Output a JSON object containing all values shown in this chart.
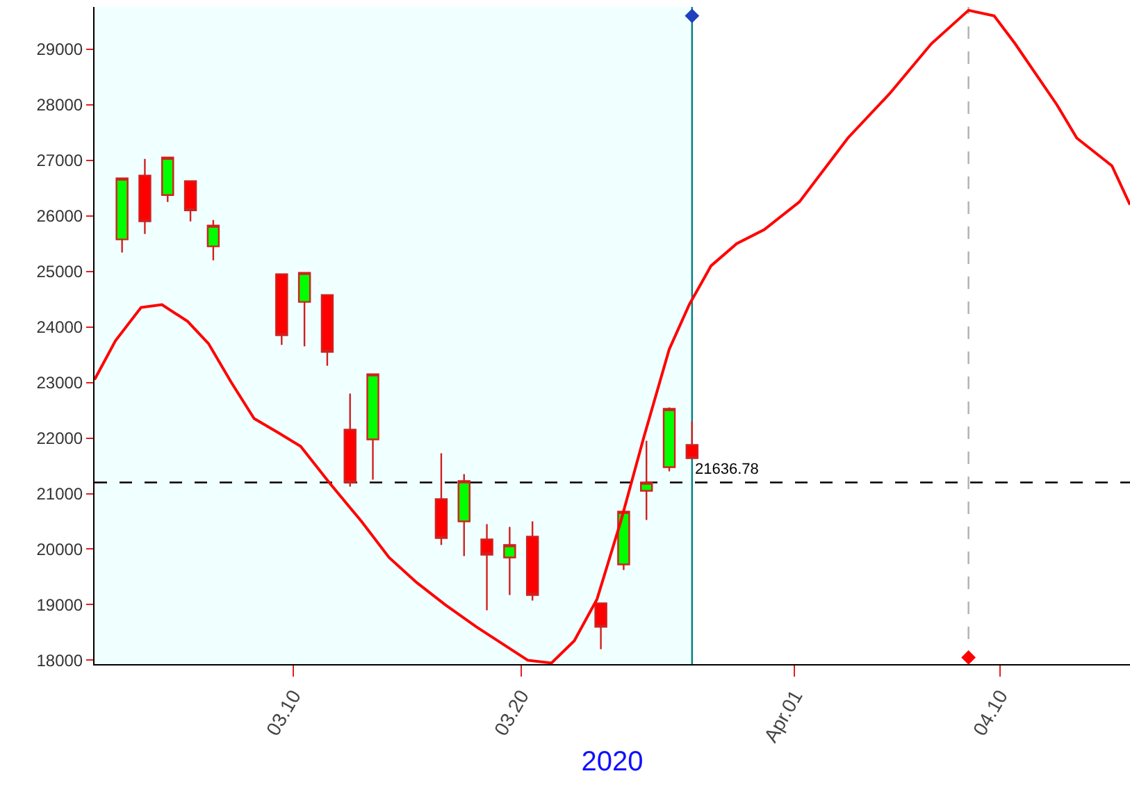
{
  "chart_data": {
    "type": "candlestick",
    "xlabel": "2020",
    "x": [
      "2020-03-02T12:00",
      "2020-03-03T12:00",
      "2020-03-04T12:00",
      "2020-03-05T12:00",
      "2020-03-06T12:00",
      "2020-03-09T12:00",
      "2020-03-10T12:00",
      "2020-03-11T12:00",
      "2020-03-12T12:00",
      "2020-03-13T12:00",
      "2020-03-16T12:00",
      "2020-03-17T12:00",
      "2020-03-18T12:00",
      "2020-03-19T12:00",
      "2020-03-20T12:00",
      "2020-03-23T12:00",
      "2020-03-24T12:00",
      "2020-03-25T12:00",
      "2020-03-26T12:00",
      "2020-03-27T12:00"
    ],
    "ohlc": [
      [
        25575,
        26675,
        25340,
        26675
      ],
      [
        26725,
        27025,
        25675,
        25900
      ],
      [
        26375,
        27050,
        26250,
        27050
      ],
      [
        26625,
        26625,
        25900,
        26100
      ],
      [
        25450,
        25925,
        25200,
        25825
      ],
      [
        24950,
        24950,
        23675,
        23850
      ],
      [
        24450,
        24975,
        23650,
        24975
      ],
      [
        24575,
        24575,
        23300,
        23550
      ],
      [
        22150,
        22800,
        21125,
        21200
      ],
      [
        21975,
        23150,
        21250,
        23150
      ],
      [
        20900,
        21725,
        20075,
        20200
      ],
      [
        20500,
        21350,
        19875,
        21225
      ],
      [
        20175,
        20450,
        18900,
        19900
      ],
      [
        19850,
        20400,
        19175,
        20075
      ],
      [
        20225,
        20500,
        19075,
        19175
      ],
      [
        19025,
        19025,
        18200,
        18600
      ],
      [
        19725,
        20675,
        19625,
        20675
      ],
      [
        21050,
        21950,
        20525,
        21200
      ],
      [
        21475,
        22550,
        21400,
        22525
      ],
      [
        21875,
        22300,
        21636.78,
        21636.78
      ]
    ],
    "colors": [
      "#00ff00",
      "#ff0000",
      "#00ff00",
      "#ff0000",
      "#00ff00",
      "#ff0000",
      "#00ff00",
      "#ff0000",
      "#ff0000",
      "#00ff00",
      "#ff0000",
      "#00ff00",
      "#ff0000",
      "#00ff00",
      "#ff0000",
      "#ff0000",
      "#00ff00",
      "#00ff00",
      "#00ff00",
      "#ff0000"
    ],
    "series": [
      {
        "type": "line",
        "color": "#ff0000",
        "x": [
          "2020-03-01T07:00",
          "2020-03-02T05:00",
          "2020-03-03T08:00",
          "2020-03-04T06:00",
          "2020-03-05T09:00",
          "2020-03-06T07:00",
          "2020-03-07T07:00",
          "2020-03-08T07:00",
          "2020-03-09T08:00",
          "2020-03-10T08:00",
          "2020-03-11T14:00",
          "2020-03-13T00:00",
          "2020-03-14T05:00",
          "2020-03-15T10:00",
          "2020-03-16T16:00",
          "2020-03-18T01:00",
          "2020-03-20T07:00",
          "2020-03-21T08:00",
          "2020-03-22T08:00",
          "2020-03-23T08:00",
          "2020-03-24T09:00",
          "2020-03-25T09:00",
          "2020-03-26T12:00",
          "2020-03-27T09:00",
          "2020-03-28T08:00",
          "2020-03-29T11:00",
          "2020-03-30T16:00",
          "2020-04-01T05:00",
          "2020-04-03T08:00",
          "2020-04-05T04:00",
          "2020-04-07T00:00",
          "2020-04-08T15:00",
          "2020-04-09T18:00",
          "2020-04-10T16:00",
          "2020-04-12T12:00",
          "2020-04-13T09:00",
          "2020-04-14T22:00",
          "2020-04-15T17:00"
        ],
        "values": [
          23050,
          23750,
          24350,
          24400,
          24100,
          23700,
          23000,
          22350,
          22100,
          21850,
          21200,
          20500,
          19850,
          19400,
          19000,
          18600,
          18000,
          17950,
          18350,
          19100,
          20500,
          22000,
          23600,
          24400,
          25100,
          25500,
          25750,
          26250,
          27400,
          28200,
          29100,
          29700,
          29600,
          29100,
          28000,
          27400,
          26900,
          26200
        ]
      },
      {
        "type": "scatter",
        "marker": "diamond",
        "color": "#1f3fbf",
        "x": [
          "2020-03-27T12:00"
        ],
        "values": [
          29600
        ]
      },
      {
        "type": "scatter",
        "marker": "diamond",
        "color": "#ff0000",
        "x": [
          "2020-04-08T15:00"
        ],
        "values": [
          18050
        ]
      }
    ],
    "xlim": [
      "2020-03-01T07:00",
      "2020-04-15T17:00"
    ],
    "xticks": [
      {
        "value": "2020-03-10",
        "label": "03.10"
      },
      {
        "value": "2020-03-20",
        "label": "03.20"
      },
      {
        "value": "2020-04-01",
        "label": "Apr.01"
      },
      {
        "value": "2020-04-10",
        "label": "04.10"
      }
    ],
    "ylim": [
      17930,
      29760
    ],
    "yticks": [
      18000,
      19000,
      20000,
      21000,
      22000,
      23000,
      24000,
      25000,
      26000,
      27000,
      28000,
      29000
    ],
    "ref_lines": [
      {
        "axis": "y",
        "value": 21200,
        "color": "#000000",
        "line_style": "dashed"
      },
      {
        "axis": "x",
        "value": "2020-03-27T12:00",
        "color": "#008080",
        "line_style": "solid"
      },
      {
        "axis": "x",
        "value": "2020-04-08T15:00",
        "color": "#b0b0b0",
        "line_style": "dashed"
      }
    ],
    "bands": [
      {
        "axis": "x",
        "from": "2020-03-01T07:00",
        "to": "2020-03-27T12:00",
        "color": "#f0ffff"
      }
    ],
    "annotations": [
      {
        "text": "21636.78",
        "x": "2020-03-27T12:00",
        "y": 21636.78
      }
    ],
    "grid": false
  }
}
